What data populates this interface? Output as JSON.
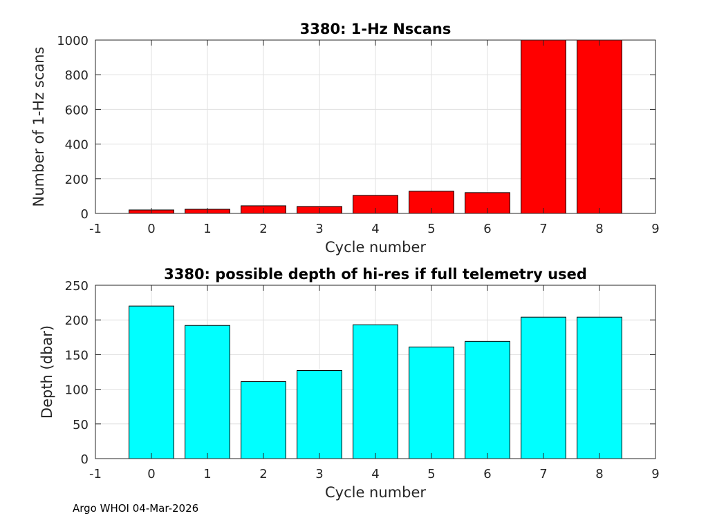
{
  "footer": "Argo WHOI 04-Mar-2026",
  "chart_data": [
    {
      "type": "bar",
      "title": "3380: 1-Hz Nscans",
      "xlabel": "Cycle number",
      "ylabel": "Number of 1-Hz scans",
      "x": [
        0,
        1,
        2,
        3,
        4,
        5,
        6,
        7,
        8
      ],
      "values": [
        20,
        24,
        44,
        40,
        104,
        128,
        120,
        1000,
        1000
      ],
      "xlim": [
        -1,
        9
      ],
      "ylim": [
        0,
        1000
      ],
      "xticks": [
        -1,
        0,
        1,
        2,
        3,
        4,
        5,
        6,
        7,
        8,
        9
      ],
      "yticks": [
        0,
        200,
        400,
        600,
        800,
        1000
      ],
      "color": "#ff0000",
      "grid": true
    },
    {
      "type": "bar",
      "title": "3380: possible depth of hi-res if full telemetry used",
      "xlabel": "Cycle number",
      "ylabel": "Depth (dbar)",
      "x": [
        0,
        1,
        2,
        3,
        4,
        5,
        6,
        7,
        8
      ],
      "values": [
        220,
        192,
        111,
        127,
        193,
        161,
        169,
        204,
        204
      ],
      "xlim": [
        -1,
        9
      ],
      "ylim": [
        0,
        250
      ],
      "xticks": [
        -1,
        0,
        1,
        2,
        3,
        4,
        5,
        6,
        7,
        8,
        9
      ],
      "yticks": [
        0,
        50,
        100,
        150,
        200,
        250
      ],
      "color": "#00ffff",
      "grid": true
    }
  ]
}
